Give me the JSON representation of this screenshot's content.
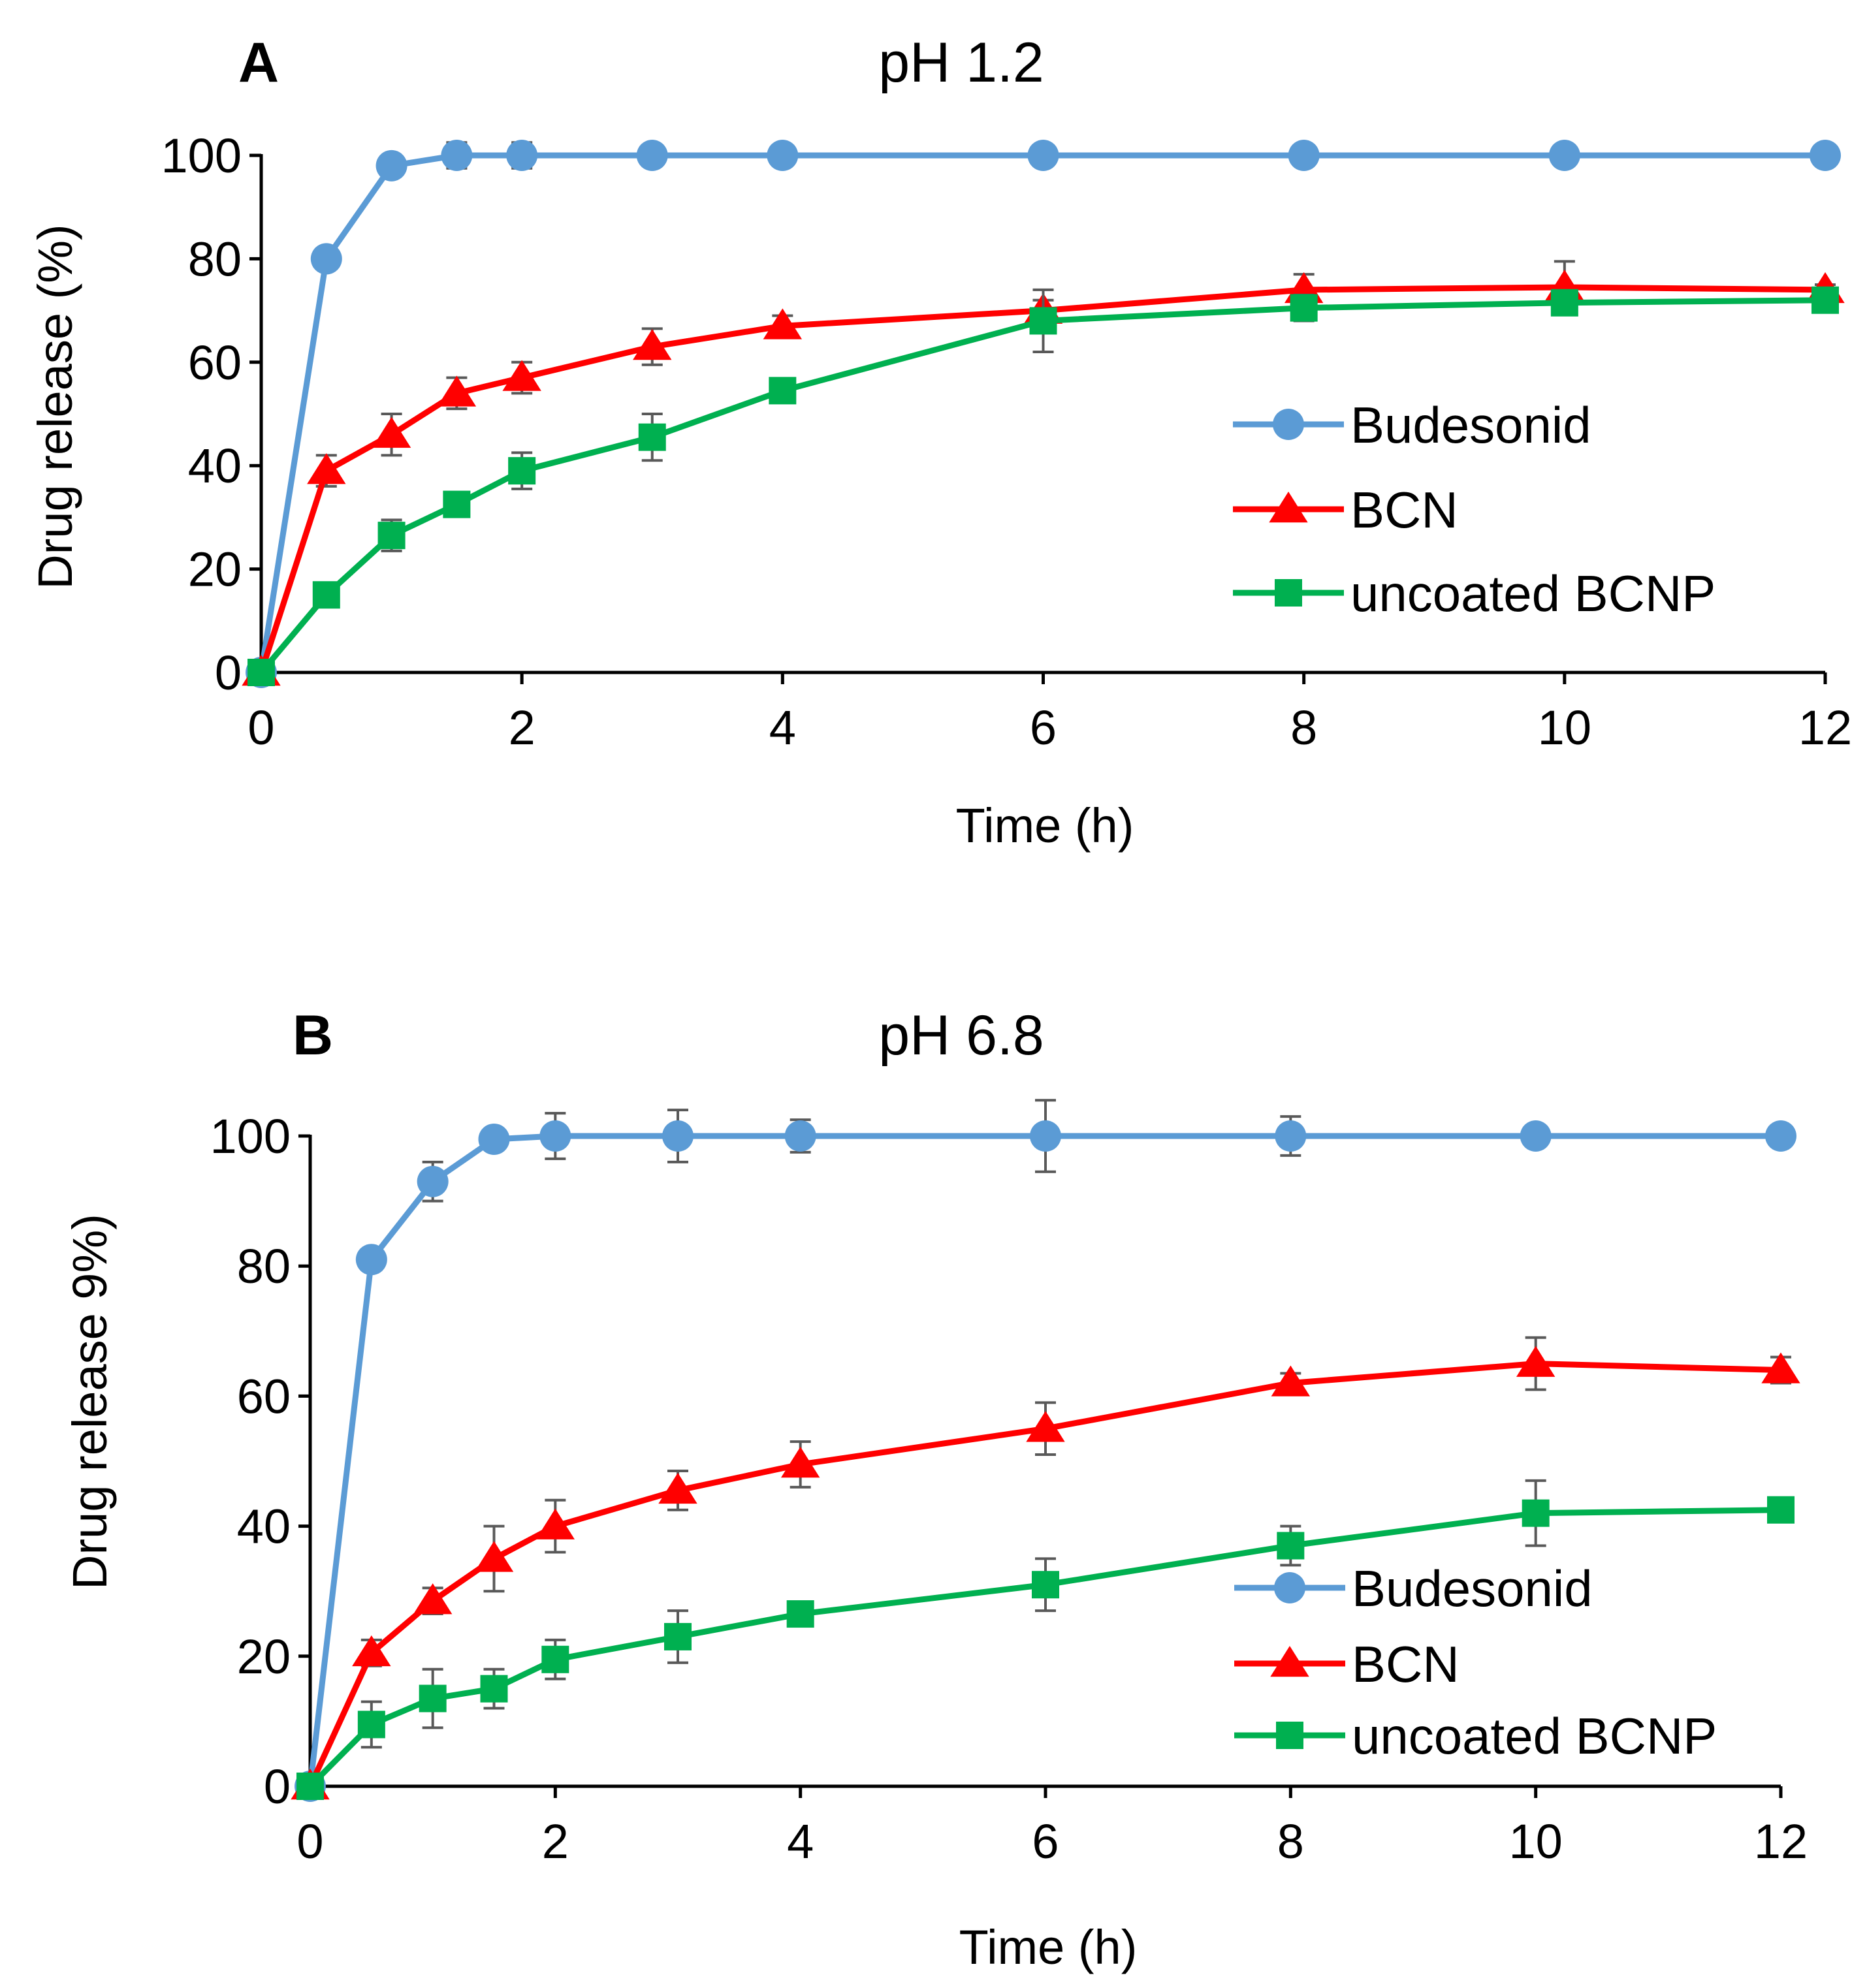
{
  "chart_data": [
    {
      "type": "line",
      "panel": "A",
      "title": "pH 1.2",
      "xlabel": "Time (h)",
      "ylabel": "Drug release (%)",
      "xlim": [
        0,
        12
      ],
      "ylim": [
        0,
        100
      ],
      "xticks": [
        0,
        2,
        4,
        6,
        8,
        10,
        12
      ],
      "yticks": [
        0,
        20,
        40,
        60,
        80,
        100
      ],
      "grid": false,
      "legend_position": "right-middle",
      "series": [
        {
          "name": "Budesonid",
          "color": "#5b9bd5",
          "marker": "circle",
          "x": [
            0,
            0.5,
            1,
            1.5,
            2,
            3,
            4,
            6,
            8,
            10,
            12
          ],
          "y": [
            0,
            80,
            98,
            100,
            100,
            100,
            100,
            100,
            100,
            100,
            100
          ],
          "err": [
            0,
            0,
            1,
            2.5,
            2.5,
            1.5,
            1.5,
            2,
            0,
            2,
            0
          ]
        },
        {
          "name": "BCN",
          "color": "#ff0000",
          "marker": "triangle",
          "x": [
            0,
            0.5,
            1,
            1.5,
            2,
            3,
            4,
            6,
            8,
            10,
            12
          ],
          "y": [
            0,
            39,
            46,
            54,
            57,
            63,
            67,
            70,
            74,
            74.5,
            74
          ],
          "err": [
            0,
            3,
            4,
            3,
            3,
            3.5,
            2,
            2,
            3,
            5,
            1
          ]
        },
        {
          "name": "uncoated BCNP",
          "color": "#00b050",
          "marker": "square",
          "x": [
            0,
            0.5,
            1,
            1.5,
            2,
            3,
            4,
            6,
            8,
            10,
            12
          ],
          "y": [
            0,
            15,
            26.5,
            32.5,
            39,
            45.5,
            54.5,
            68,
            70.5,
            71.5,
            72
          ],
          "err": [
            0,
            1,
            3,
            2,
            3.5,
            4.5,
            2,
            6,
            2.5,
            2,
            1
          ]
        }
      ]
    },
    {
      "type": "line",
      "panel": "B",
      "title": "pH 6.8",
      "xlabel": "Time (h)",
      "ylabel": "Drug release 9%)",
      "xlim": [
        0,
        12
      ],
      "ylim": [
        0,
        100
      ],
      "xticks": [
        0,
        2,
        4,
        6,
        8,
        10,
        12
      ],
      "yticks": [
        0,
        20,
        40,
        60,
        80,
        100
      ],
      "grid": false,
      "legend_position": "lower-right",
      "series": [
        {
          "name": "Budesonid",
          "color": "#5b9bd5",
          "marker": "circle",
          "x": [
            0,
            0.5,
            1,
            1.5,
            2,
            3,
            4,
            6,
            8,
            10,
            12
          ],
          "y": [
            0,
            81,
            93,
            99.5,
            100,
            100,
            100,
            100,
            100,
            100,
            100
          ],
          "err": [
            0,
            0,
            3,
            1,
            3.5,
            4,
            2.5,
            5.5,
            3,
            1.5,
            0
          ]
        },
        {
          "name": "BCN",
          "color": "#ff0000",
          "marker": "triangle",
          "x": [
            0,
            0.5,
            1,
            1.5,
            2,
            3,
            4,
            6,
            8,
            10,
            12
          ],
          "y": [
            0,
            20.5,
            28.5,
            35,
            40,
            45.5,
            49.5,
            55,
            62,
            65,
            64
          ],
          "err": [
            0,
            2,
            2,
            5,
            4,
            3,
            3.5,
            4,
            1.5,
            4,
            2
          ]
        },
        {
          "name": "uncoated BCNP",
          "color": "#00b050",
          "marker": "square",
          "x": [
            0,
            0.5,
            1,
            1.5,
            2,
            3,
            4,
            6,
            8,
            10,
            12
          ],
          "y": [
            0,
            9.5,
            13.5,
            15,
            19.5,
            23,
            26.5,
            31,
            37,
            42,
            42.5
          ],
          "err": [
            0,
            3.5,
            4.5,
            3,
            3,
            4,
            1,
            4,
            3,
            5,
            1
          ]
        }
      ]
    }
  ]
}
